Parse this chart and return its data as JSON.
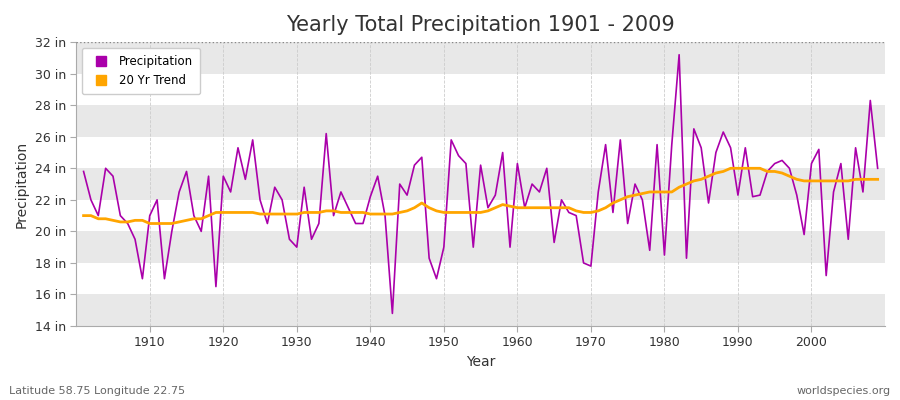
{
  "title": "Yearly Total Precipitation 1901 - 2009",
  "xlabel": "Year",
  "ylabel": "Precipitation",
  "bottom_left": "Latitude 58.75 Longitude 22.75",
  "bottom_right": "worldspecies.org",
  "ylim": [
    14,
    32
  ],
  "ytick_labels": [
    "14 in",
    "16 in",
    "18 in",
    "20 in",
    "22 in",
    "24 in",
    "26 in",
    "28 in",
    "30 in",
    "32 in"
  ],
  "ytick_values": [
    14,
    16,
    18,
    20,
    22,
    24,
    26,
    28,
    30,
    32
  ],
  "years": [
    1901,
    1902,
    1903,
    1904,
    1905,
    1906,
    1907,
    1908,
    1909,
    1910,
    1911,
    1912,
    1913,
    1914,
    1915,
    1916,
    1917,
    1918,
    1919,
    1920,
    1921,
    1922,
    1923,
    1924,
    1925,
    1926,
    1927,
    1928,
    1929,
    1930,
    1931,
    1932,
    1933,
    1934,
    1935,
    1936,
    1937,
    1938,
    1939,
    1940,
    1941,
    1942,
    1943,
    1944,
    1945,
    1946,
    1947,
    1948,
    1949,
    1950,
    1951,
    1952,
    1953,
    1954,
    1955,
    1956,
    1957,
    1958,
    1959,
    1960,
    1961,
    1962,
    1963,
    1964,
    1965,
    1966,
    1967,
    1968,
    1969,
    1970,
    1971,
    1972,
    1973,
    1974,
    1975,
    1976,
    1977,
    1978,
    1979,
    1980,
    1981,
    1982,
    1983,
    1984,
    1985,
    1986,
    1987,
    1988,
    1989,
    1990,
    1991,
    1992,
    1993,
    1994,
    1995,
    1996,
    1997,
    1998,
    1999,
    2000,
    2001,
    2002,
    2003,
    2004,
    2005,
    2006,
    2007,
    2008,
    2009
  ],
  "precipitation": [
    23.8,
    22.0,
    21.0,
    24.0,
    23.5,
    21.0,
    20.5,
    19.5,
    17.0,
    21.0,
    22.0,
    17.0,
    20.0,
    22.5,
    23.8,
    21.0,
    20.0,
    23.5,
    16.5,
    23.5,
    22.5,
    25.3,
    23.3,
    25.8,
    22.0,
    20.5,
    22.8,
    22.0,
    19.5,
    19.0,
    22.8,
    19.5,
    20.5,
    26.2,
    21.0,
    22.5,
    21.5,
    20.5,
    20.5,
    22.2,
    23.5,
    21.0,
    14.8,
    23.0,
    22.3,
    24.2,
    24.7,
    18.3,
    17.0,
    19.0,
    25.8,
    24.8,
    24.3,
    19.0,
    24.2,
    21.5,
    22.3,
    25.0,
    19.0,
    24.3,
    21.5,
    23.0,
    22.5,
    24.0,
    19.3,
    22.0,
    21.2,
    21.0,
    18.0,
    17.8,
    22.5,
    25.5,
    21.2,
    25.8,
    20.5,
    23.0,
    22.0,
    18.8,
    25.5,
    18.5,
    25.5,
    31.2,
    18.3,
    26.5,
    25.3,
    21.8,
    25.0,
    26.3,
    25.3,
    22.3,
    25.3,
    22.2,
    22.3,
    23.8,
    24.3,
    24.5,
    24.0,
    22.3,
    19.8,
    24.3,
    25.2,
    17.2,
    22.5,
    24.3,
    19.5,
    25.3,
    22.5,
    28.3,
    24.0
  ],
  "trend": [
    21.0,
    21.0,
    20.8,
    20.8,
    20.7,
    20.6,
    20.6,
    20.7,
    20.7,
    20.5,
    20.5,
    20.5,
    20.5,
    20.6,
    20.7,
    20.8,
    20.8,
    21.0,
    21.2,
    21.2,
    21.2,
    21.2,
    21.2,
    21.2,
    21.1,
    21.1,
    21.1,
    21.1,
    21.1,
    21.1,
    21.2,
    21.2,
    21.2,
    21.3,
    21.3,
    21.2,
    21.2,
    21.2,
    21.2,
    21.1,
    21.1,
    21.1,
    21.1,
    21.2,
    21.3,
    21.5,
    21.8,
    21.5,
    21.3,
    21.2,
    21.2,
    21.2,
    21.2,
    21.2,
    21.2,
    21.3,
    21.5,
    21.7,
    21.6,
    21.5,
    21.5,
    21.5,
    21.5,
    21.5,
    21.5,
    21.5,
    21.5,
    21.3,
    21.2,
    21.2,
    21.3,
    21.5,
    21.8,
    22.0,
    22.2,
    22.3,
    22.4,
    22.5,
    22.5,
    22.5,
    22.5,
    22.8,
    23.0,
    23.2,
    23.3,
    23.5,
    23.7,
    23.8,
    24.0,
    24.0,
    24.0,
    24.0,
    24.0,
    23.8,
    23.8,
    23.7,
    23.5,
    23.3,
    23.2,
    23.2,
    23.2,
    23.2,
    23.2,
    23.2,
    23.2,
    23.3,
    23.3,
    23.3,
    23.3
  ],
  "precip_color": "#AA00AA",
  "trend_color": "#FFA500",
  "bg_color": "#FFFFFF",
  "band_color_light": "#FFFFFF",
  "band_color_dark": "#E8E8E8",
  "title_fontsize": 15,
  "label_fontsize": 10,
  "tick_fontsize": 9,
  "dotted_line_y": 32,
  "xtick_values": [
    1910,
    1920,
    1930,
    1940,
    1950,
    1960,
    1970,
    1980,
    1990,
    2000
  ]
}
